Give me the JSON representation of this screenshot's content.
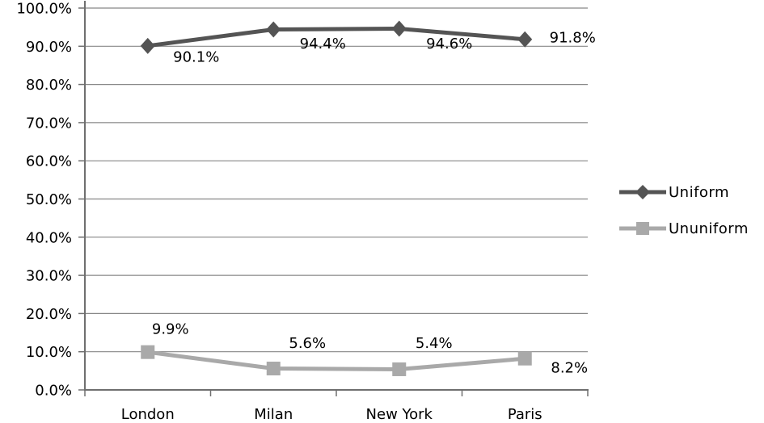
{
  "chart_data": {
    "type": "line",
    "title": "",
    "categories": [
      "London",
      "Milan",
      "New York",
      "Paris"
    ],
    "series": [
      {
        "name": "Uniform",
        "values": [
          90.1,
          94.4,
          94.6,
          91.8
        ],
        "data_labels": [
          "90.1%",
          "94.4%",
          "94.6%",
          "91.8%"
        ],
        "color": "#545454",
        "marker": "diamond"
      },
      {
        "name": "Ununiform",
        "values": [
          9.9,
          5.6,
          5.4,
          8.2
        ],
        "data_labels": [
          "9.9%",
          "5.6%",
          "5.4%",
          "8.2%"
        ],
        "color": "#a9a9a9",
        "marker": "square"
      }
    ],
    "y_axis": {
      "min": 0,
      "max": 100,
      "step": 10,
      "tick_labels": [
        "0.0%",
        "10.0%",
        "20.0%",
        "30.0%",
        "40.0%",
        "50.0%",
        "60.0%",
        "70.0%",
        "80.0%",
        "90.0%",
        "100.0%"
      ]
    },
    "x_axis": {
      "tick_labels": [
        "London",
        "Milan",
        "New York",
        "Paris"
      ]
    },
    "legend_position": "right",
    "grid": true,
    "colors": {
      "gridline": "#878787",
      "axis": "#6f6f6f",
      "text": "#000000",
      "background": "#ffffff"
    }
  }
}
